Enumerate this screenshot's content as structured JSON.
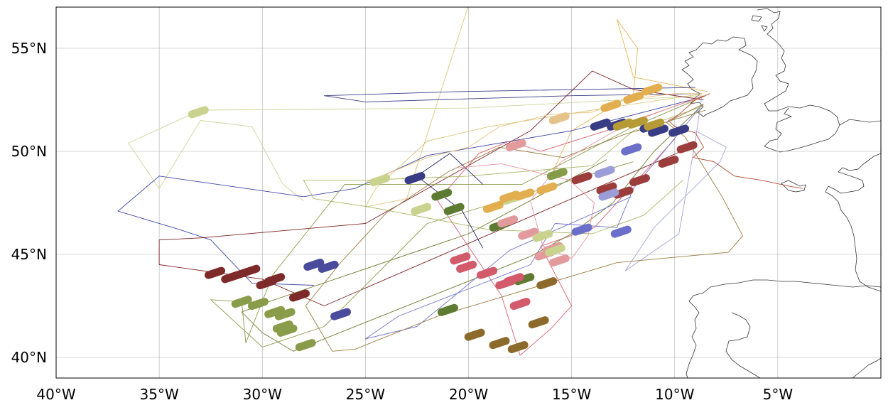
{
  "map": {
    "lon_range": [
      -40,
      0
    ],
    "lat_range": [
      39,
      57
    ],
    "gridlines": true,
    "longitude_ticks": [
      {
        "value": -40,
        "label": "40°W"
      },
      {
        "value": -35,
        "label": "35°W"
      },
      {
        "value": -30,
        "label": "30°W"
      },
      {
        "value": -25,
        "label": "25°W"
      },
      {
        "value": -20,
        "label": "20°W"
      },
      {
        "value": -15,
        "label": "15°W"
      },
      {
        "value": -10,
        "label": "10°W"
      },
      {
        "value": -5,
        "label": "5°W"
      }
    ],
    "latitude_ticks": [
      {
        "value": 55,
        "label": "55°N"
      },
      {
        "value": 50,
        "label": "50°N"
      },
      {
        "value": 45,
        "label": "45°N"
      },
      {
        "value": 40,
        "label": "40°N"
      }
    ],
    "coastline_color": "#333333",
    "grid_color": "#b0b0b0"
  },
  "flight_tracks": [
    {
      "color": "#dcc57a",
      "points": [
        [
          -8.6,
          52.8
        ],
        [
          -14,
          52
        ],
        [
          -19,
          51.2
        ],
        [
          -22,
          50.5
        ],
        [
          -24.5,
          48.2
        ],
        [
          -25,
          47.3
        ],
        [
          -23,
          47.7
        ],
        [
          -20,
          57.1
        ]
      ]
    },
    {
      "color": "#e2b55a",
      "points": [
        [
          -8.4,
          52.9
        ],
        [
          -12,
          53.6
        ],
        [
          -12.8,
          56.4
        ],
        [
          -11.8,
          55
        ],
        [
          -12,
          52.8
        ],
        [
          -15,
          51
        ],
        [
          -16,
          48.8
        ]
      ]
    },
    {
      "color": "#c9d79a",
      "points": [
        [
          -8.7,
          52.7
        ],
        [
          -20,
          52.1
        ],
        [
          -33,
          52.0
        ],
        [
          -36.5,
          50.4
        ],
        [
          -35,
          48.2
        ],
        [
          -33,
          51.5
        ],
        [
          -30.5,
          51.2
        ],
        [
          -29,
          48.4
        ],
        [
          -28,
          47.6
        ]
      ]
    },
    {
      "color": "#3a3d85",
      "points": [
        [
          -8.7,
          52.8
        ],
        [
          -15,
          52.7
        ],
        [
          -25,
          52.4
        ],
        [
          -27,
          52.7
        ],
        [
          -20.5,
          52.9
        ],
        [
          -9,
          53.1
        ]
      ]
    },
    {
      "color": "#3f48a8",
      "points": [
        [
          -8.8,
          52.6
        ],
        [
          -15,
          51
        ],
        [
          -22,
          49.8
        ],
        [
          -25.5,
          48.2
        ],
        [
          -28,
          47.8
        ],
        [
          -35,
          48.8
        ],
        [
          -37,
          47.1
        ],
        [
          -34,
          46.2
        ],
        [
          -32.5,
          45.7
        ],
        [
          -30.5,
          43.6
        ],
        [
          -27.5,
          43.5
        ]
      ]
    },
    {
      "color": "#7d1f22",
      "points": [
        [
          -8.6,
          52.5
        ],
        [
          -12,
          53
        ],
        [
          -14,
          53.9
        ],
        [
          -17,
          51
        ],
        [
          -25,
          46.5
        ],
        [
          -33,
          45.8
        ],
        [
          -35,
          45.7
        ],
        [
          -35,
          44.5
        ],
        [
          -30,
          43.8
        ],
        [
          -27,
          42.5
        ],
        [
          -9,
          50.3
        ]
      ]
    },
    {
      "color": "#d86070",
      "points": [
        [
          -8.6,
          52.7
        ],
        [
          -13,
          51.1
        ],
        [
          -16.5,
          50
        ],
        [
          -18,
          50.5
        ],
        [
          -19.5,
          49.9
        ],
        [
          -21.5,
          47.6
        ],
        [
          -18.4,
          43
        ],
        [
          -17.5,
          40.1
        ],
        [
          -16,
          41.4
        ],
        [
          -15,
          42.5
        ],
        [
          -16.5,
          45.4
        ],
        [
          -13.9,
          46.3
        ],
        [
          -10,
          50.6
        ]
      ]
    },
    {
      "color": "#6f7a2e",
      "points": [
        [
          -8.6,
          52.3
        ],
        [
          -11,
          50
        ],
        [
          -13,
          47.5
        ],
        [
          -15,
          46
        ],
        [
          -17,
          44.9
        ],
        [
          -28.5,
          40.3
        ],
        [
          -30,
          41.2
        ],
        [
          -31,
          42.2
        ],
        [
          -29.7,
          42.7
        ],
        [
          -20,
          46
        ],
        [
          -13.3,
          49.6
        ]
      ]
    },
    {
      "color": "#8a9c4c",
      "points": [
        [
          -8.5,
          52.7
        ],
        [
          -12,
          51.2
        ],
        [
          -17.4,
          48.4
        ],
        [
          -26,
          48.4
        ],
        [
          -29.5,
          44
        ],
        [
          -30.8,
          40.7
        ],
        [
          -31,
          42.7
        ],
        [
          -32.5,
          42.8
        ],
        [
          -30,
          40.5
        ],
        [
          -27,
          41.5
        ],
        [
          -22,
          46.5
        ],
        [
          -12,
          49.5
        ]
      ]
    },
    {
      "color": "#a9b863",
      "points": [
        [
          -8.6,
          52.2
        ],
        [
          -12,
          51
        ],
        [
          -14,
          49.3
        ],
        [
          -20,
          48.8
        ],
        [
          -25,
          48.6
        ],
        [
          -28,
          48.6
        ],
        [
          -27.5,
          47.7
        ],
        [
          -24.8,
          47.3
        ],
        [
          -19,
          46.2
        ],
        [
          -14,
          46
        ],
        [
          -11.5,
          46.9
        ],
        [
          -9.6,
          48.6
        ]
      ]
    },
    {
      "color": "#a3a3d9",
      "points": [
        [
          -8.7,
          52.6
        ],
        [
          -9,
          50.5
        ],
        [
          -9.8,
          46
        ],
        [
          -12.4,
          44.2
        ],
        [
          -11,
          46.3
        ],
        [
          -7.8,
          49.5
        ],
        [
          -7.5,
          50.2
        ],
        [
          -9,
          51
        ]
      ]
    },
    {
      "color": "#6f75c9",
      "points": [
        [
          -8.8,
          52.1
        ],
        [
          -12,
          48.2
        ],
        [
          -12.8,
          46.3
        ],
        [
          -15.8,
          46.5
        ],
        [
          -17,
          44.5
        ],
        [
          -23.4,
          42
        ],
        [
          -25,
          40.9
        ],
        [
          -22.5,
          41.5
        ],
        [
          -18,
          45.2
        ],
        [
          -12.1,
          47.8
        ]
      ]
    },
    {
      "color": "#9c7a3f",
      "points": [
        [
          -8.6,
          52.3
        ],
        [
          -10.4,
          51.4
        ],
        [
          -9.5,
          50.7
        ],
        [
          -7.7,
          47.8
        ],
        [
          -6.7,
          45.9
        ],
        [
          -7.4,
          45.1
        ],
        [
          -12.8,
          44.6
        ],
        [
          -21.5,
          42
        ],
        [
          -25.5,
          40.4
        ],
        [
          -26.6,
          40.3
        ],
        [
          -27.9,
          42.5
        ],
        [
          -26.2,
          44.6
        ],
        [
          -24,
          47
        ],
        [
          -21,
          49
        ],
        [
          -18.5,
          50.2
        ],
        [
          -15.4,
          49.7
        ],
        [
          -12.5,
          50.8
        ],
        [
          -8.5,
          52
        ]
      ]
    },
    {
      "color": "#e8c27c",
      "points": [
        [
          -8.7,
          52.8
        ],
        [
          -10,
          52.8
        ],
        [
          -12.5,
          52.5
        ],
        [
          -14,
          51.9
        ],
        [
          -16,
          51.8
        ],
        [
          -18.5,
          51.2
        ],
        [
          -20,
          50.2
        ],
        [
          -22,
          49.7
        ],
        [
          -25,
          48.5
        ]
      ]
    },
    {
      "color": "#1f2468",
      "points": [
        [
          -19.3,
          48.4
        ],
        [
          -20.9,
          49.9
        ],
        [
          -22.5,
          48.8
        ],
        [
          -20.3,
          47.1
        ],
        [
          -19.3,
          45.3
        ]
      ]
    },
    {
      "color": "#e8959e",
      "points": [
        [
          -8.5,
          52.7
        ],
        [
          -12,
          51.5
        ],
        [
          -15.5,
          49.5
        ],
        [
          -17,
          47.6
        ],
        [
          -16.4,
          45.4
        ],
        [
          -15,
          44.8
        ],
        [
          -14.2,
          45.9
        ],
        [
          -13.9,
          47.5
        ],
        [
          -15.1,
          48.6
        ],
        [
          -18.4,
          49.4
        ],
        [
          -20.5,
          49.2
        ]
      ]
    },
    {
      "color": "#b04d31",
      "points": [
        [
          -8.3,
          52.8
        ],
        [
          -9,
          52.5
        ],
        [
          -9.9,
          51.7
        ],
        [
          -10.3,
          51.5
        ],
        [
          -10,
          51.2
        ],
        [
          -9,
          50.9
        ],
        [
          -8.6,
          50.2
        ],
        [
          -9.1,
          49.7
        ],
        [
          -8.1,
          49.5
        ],
        [
          -7.1,
          48.8
        ],
        [
          -5.8,
          48.6
        ],
        [
          -4.4,
          48.3
        ],
        [
          -3.8,
          48.2
        ]
      ]
    }
  ],
  "dropsonde_clusters": [
    {
      "color": "#7e2a2a",
      "points": [
        [
          -32.3,
          44.1
        ],
        [
          -31.5,
          43.9
        ],
        [
          -31.2,
          44.0
        ],
        [
          -30.6,
          44.2
        ],
        [
          -29.8,
          43.6
        ],
        [
          -29.4,
          43.8
        ],
        [
          -28.2,
          43.0
        ]
      ]
    },
    {
      "color": "#4a4b9c",
      "points": [
        [
          -27.5,
          44.5
        ],
        [
          -26.8,
          44.4
        ],
        [
          -26.2,
          42.1
        ]
      ]
    },
    {
      "color": "#889c49",
      "points": [
        [
          -31.0,
          42.7
        ],
        [
          -30.2,
          42.6
        ],
        [
          -29.4,
          42.2
        ],
        [
          -28.9,
          42.1
        ],
        [
          -29.0,
          41.5
        ],
        [
          -28.8,
          41.3
        ],
        [
          -27.9,
          40.6
        ]
      ]
    },
    {
      "color": "#5d7c31",
      "points": [
        [
          -21.3,
          47.9
        ],
        [
          -20.7,
          47.2
        ],
        [
          -21.0,
          42.3
        ],
        [
          -17.3,
          43.8
        ],
        [
          -18.5,
          46.4
        ]
      ]
    },
    {
      "color": "#383c84",
      "points": [
        [
          -22.6,
          48.7
        ],
        [
          -13.6,
          51.3
        ],
        [
          -12.8,
          51.3
        ],
        [
          -11.2,
          51.2
        ],
        [
          -10.8,
          51.0
        ],
        [
          -9.8,
          51.0
        ]
      ]
    },
    {
      "color": "#d25a6a",
      "points": [
        [
          -20.4,
          44.8
        ],
        [
          -20.1,
          44.4
        ],
        [
          -19.1,
          44.1
        ],
        [
          -18.2,
          43.6
        ],
        [
          -17.8,
          43.8
        ],
        [
          -17.5,
          42.6
        ]
      ]
    },
    {
      "color": "#e29a9c",
      "points": [
        [
          -18.1,
          46.6
        ],
        [
          -17.1,
          46.0
        ],
        [
          -16.3,
          45.0
        ],
        [
          -15.9,
          45.3
        ],
        [
          -15.6,
          44.7
        ],
        [
          -17.7,
          50.3
        ]
      ]
    },
    {
      "color": "#c9d38e",
      "points": [
        [
          -24.3,
          48.6
        ],
        [
          -22.3,
          47.2
        ],
        [
          -17.9,
          47.7
        ],
        [
          -16.4,
          45.9
        ],
        [
          -15.8,
          45.2
        ],
        [
          -33.1,
          51.9
        ]
      ]
    },
    {
      "color": "#e2ae50",
      "points": [
        [
          -18.8,
          47.3
        ],
        [
          -17.3,
          47.9
        ],
        [
          -16.2,
          48.2
        ],
        [
          -18.0,
          47.8
        ],
        [
          -13.1,
          52.2
        ],
        [
          -12.0,
          52.6
        ],
        [
          -11.1,
          53.0
        ]
      ]
    },
    {
      "color": "#e6c38a",
      "points": [
        [
          -15.6,
          51.6
        ]
      ]
    },
    {
      "color": "#b69a35",
      "points": [
        [
          -12.5,
          51.3
        ],
        [
          -11.8,
          51.4
        ],
        [
          -11.0,
          51.3
        ]
      ]
    },
    {
      "color": "#9b3d3d",
      "points": [
        [
          -14.5,
          48.7
        ],
        [
          -13.3,
          48.2
        ],
        [
          -12.5,
          48.0
        ],
        [
          -11.7,
          48.6
        ],
        [
          -10.3,
          49.5
        ],
        [
          -9.4,
          50.2
        ]
      ]
    },
    {
      "color": "#6b6fc9",
      "points": [
        [
          -14.5,
          46.2
        ],
        [
          -12.6,
          46.1
        ],
        [
          -12.1,
          50.1
        ]
      ]
    },
    {
      "color": "#9b9dd8",
      "points": [
        [
          -13.4,
          49.0
        ],
        [
          -13.2,
          47.9
        ]
      ]
    },
    {
      "color": "#8c6a2c",
      "points": [
        [
          -19.7,
          41.1
        ],
        [
          -18.5,
          40.7
        ],
        [
          -17.6,
          40.5
        ],
        [
          -16.6,
          41.7
        ],
        [
          -16.2,
          43.6
        ]
      ]
    },
    {
      "color": "#849c48",
      "points": [
        [
          -15.7,
          48.9
        ]
      ]
    }
  ]
}
